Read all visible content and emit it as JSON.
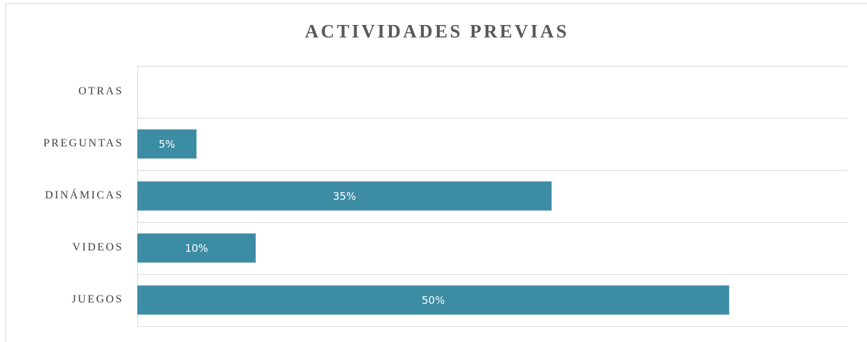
{
  "chart_data": {
    "type": "bar",
    "orientation": "horizontal",
    "title": "ACTIVIDADES PREVIAS",
    "categories": [
      "OTRAS",
      "PREGUNTAS",
      "DINÁMICAS",
      "VIDEOS",
      "JUEGOS"
    ],
    "values": [
      0,
      5,
      35,
      10,
      50
    ],
    "value_labels": [
      null,
      "5%",
      "35%",
      "10%",
      "50%"
    ],
    "color": "#3c8ca4",
    "xlim": [
      0,
      60
    ],
    "grid": true
  }
}
